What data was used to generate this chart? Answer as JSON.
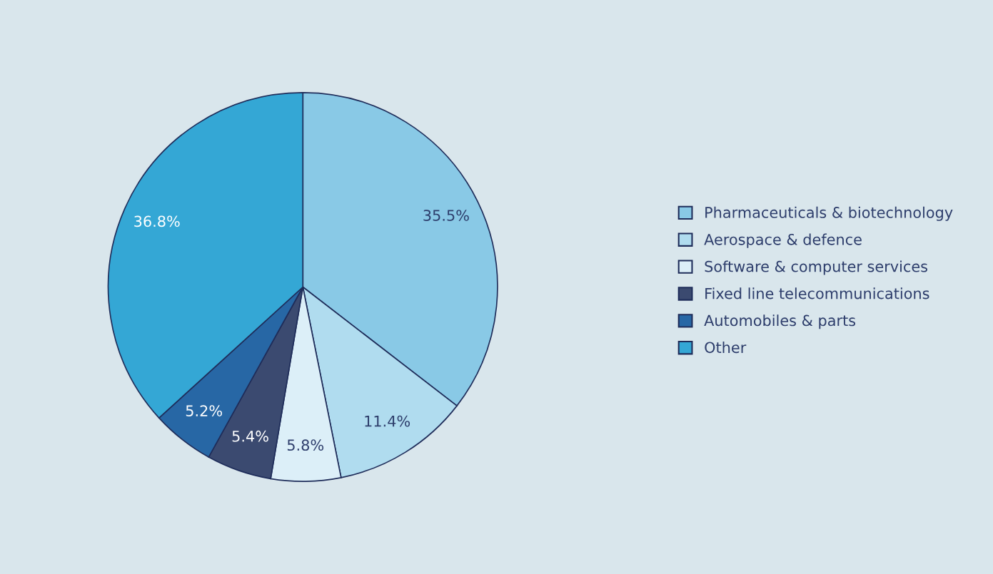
{
  "chart_data": {
    "type": "pie",
    "categories": [
      "Pharmaceuticals & biotechnology",
      "Aerospace & defence",
      "Software & computer services",
      "Fixed line telecommunications",
      "Automobiles & parts",
      "Other"
    ],
    "values": [
      35.5,
      11.4,
      5.8,
      5.4,
      5.2,
      36.8
    ],
    "colors": [
      "#89c9e6",
      "#b0dcef",
      "#dceff8",
      "#3b4a70",
      "#2767a5",
      "#34a7d5"
    ],
    "value_labels": [
      "35.5%",
      "11.4%",
      "5.8%",
      "5.4%",
      "5.2%",
      "36.8%"
    ],
    "legend": "right"
  }
}
